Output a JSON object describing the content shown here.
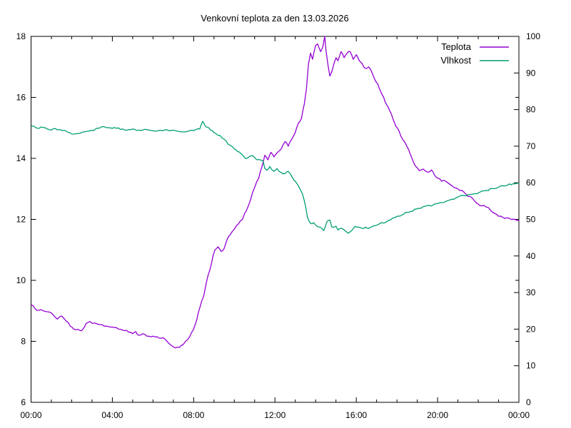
{
  "title": "Venkovní teplota za den 13.03.2026",
  "legend": [
    {
      "label": "Teplota",
      "color": "#9400d3"
    },
    {
      "label": "Vlhkost",
      "color": "#009e73"
    }
  ],
  "axes": {
    "x": {
      "tick_labels": [
        "00:00",
        "04:00",
        "08:00",
        "12:00",
        "16:00",
        "20:00",
        "00:00"
      ],
      "major_every_hours": 4,
      "minor_every_hours": 1,
      "range_hours": [
        0,
        24
      ]
    },
    "y_left": {
      "tick_labels": [
        "6",
        "8",
        "10",
        "12",
        "14",
        "16",
        "18"
      ],
      "range": [
        6,
        18
      ]
    },
    "y_right": {
      "tick_labels": [
        "0",
        "10",
        "20",
        "30",
        "40",
        "50",
        "60",
        "70",
        "80",
        "90",
        "100"
      ],
      "range": [
        0,
        100
      ]
    }
  },
  "chart_data": {
    "type": "line",
    "title": "Venkovní teplota za den 13.03.2026",
    "x_unit": "hours",
    "x_range": [
      0,
      24
    ],
    "y_left_range": [
      6,
      18
    ],
    "y_right_range": [
      0,
      100
    ],
    "grid": false,
    "legend_position": "top-right-inside",
    "series": [
      {
        "name": "Teplota",
        "axis": "left",
        "color": "#9400d3",
        "points": [
          [
            0,
            9.2
          ],
          [
            0.2,
            9.07
          ],
          [
            0.4,
            9.02
          ],
          [
            0.6,
            9.0
          ],
          [
            0.8,
            8.97
          ],
          [
            1.0,
            8.93
          ],
          [
            1.15,
            8.82
          ],
          [
            1.3,
            8.73
          ],
          [
            1.5,
            8.83
          ],
          [
            1.65,
            8.72
          ],
          [
            1.85,
            8.6
          ],
          [
            2.0,
            8.47
          ],
          [
            2.2,
            8.38
          ],
          [
            2.4,
            8.36
          ],
          [
            2.55,
            8.4
          ],
          [
            2.7,
            8.58
          ],
          [
            2.9,
            8.65
          ],
          [
            3.1,
            8.6
          ],
          [
            3.4,
            8.55
          ],
          [
            3.7,
            8.5
          ],
          [
            4.0,
            8.47
          ],
          [
            4.3,
            8.4
          ],
          [
            4.6,
            8.35
          ],
          [
            4.8,
            8.3
          ],
          [
            5.0,
            8.25
          ],
          [
            5.15,
            8.32
          ],
          [
            5.3,
            8.2
          ],
          [
            5.5,
            8.25
          ],
          [
            5.7,
            8.17
          ],
          [
            5.9,
            8.15
          ],
          [
            6.2,
            8.15
          ],
          [
            6.5,
            8.12
          ],
          [
            6.7,
            8.0
          ],
          [
            6.85,
            7.9
          ],
          [
            7.0,
            7.82
          ],
          [
            7.3,
            7.8
          ],
          [
            7.45,
            7.88
          ],
          [
            7.6,
            8.0
          ],
          [
            7.8,
            8.15
          ],
          [
            8.0,
            8.4
          ],
          [
            8.15,
            8.7
          ],
          [
            8.3,
            9.1
          ],
          [
            8.5,
            9.5
          ],
          [
            8.65,
            10.0
          ],
          [
            8.8,
            10.35
          ],
          [
            8.95,
            10.8
          ],
          [
            9.05,
            11.0
          ],
          [
            9.2,
            11.1
          ],
          [
            9.35,
            10.95
          ],
          [
            9.5,
            11.05
          ],
          [
            9.65,
            11.35
          ],
          [
            9.8,
            11.5
          ],
          [
            10.0,
            11.68
          ],
          [
            10.2,
            11.85
          ],
          [
            10.4,
            12.0
          ],
          [
            10.6,
            12.3
          ],
          [
            10.8,
            12.65
          ],
          [
            11.0,
            13.05
          ],
          [
            11.2,
            13.35
          ],
          [
            11.35,
            13.7
          ],
          [
            11.5,
            14.1
          ],
          [
            11.65,
            13.95
          ],
          [
            11.8,
            14.2
          ],
          [
            11.95,
            14.05
          ],
          [
            12.1,
            14.18
          ],
          [
            12.3,
            14.3
          ],
          [
            12.5,
            14.55
          ],
          [
            12.65,
            14.4
          ],
          [
            12.8,
            14.6
          ],
          [
            13.0,
            14.85
          ],
          [
            13.15,
            15.15
          ],
          [
            13.3,
            15.3
          ],
          [
            13.45,
            15.8
          ],
          [
            13.55,
            16.3
          ],
          [
            13.65,
            17.1
          ],
          [
            13.75,
            17.45
          ],
          [
            13.85,
            17.25
          ],
          [
            14.0,
            17.7
          ],
          [
            14.1,
            17.75
          ],
          [
            14.25,
            17.5
          ],
          [
            14.35,
            17.65
          ],
          [
            14.45,
            18.0
          ],
          [
            14.5,
            17.6
          ],
          [
            14.6,
            17.1
          ],
          [
            14.7,
            16.7
          ],
          [
            14.8,
            16.85
          ],
          [
            14.9,
            17.1
          ],
          [
            15.0,
            17.3
          ],
          [
            15.1,
            17.2
          ],
          [
            15.25,
            17.5
          ],
          [
            15.4,
            17.3
          ],
          [
            15.55,
            17.45
          ],
          [
            15.7,
            17.5
          ],
          [
            15.85,
            17.25
          ],
          [
            16.0,
            17.4
          ],
          [
            16.15,
            17.2
          ],
          [
            16.3,
            17.1
          ],
          [
            16.45,
            16.95
          ],
          [
            16.6,
            17.0
          ],
          [
            16.75,
            16.85
          ],
          [
            16.9,
            16.6
          ],
          [
            17.05,
            16.45
          ],
          [
            17.2,
            16.2
          ],
          [
            17.35,
            16.0
          ],
          [
            17.5,
            15.75
          ],
          [
            17.65,
            15.55
          ],
          [
            17.8,
            15.3
          ],
          [
            17.95,
            15.05
          ],
          [
            18.1,
            14.9
          ],
          [
            18.3,
            14.6
          ],
          [
            18.5,
            14.38
          ],
          [
            18.65,
            14.15
          ],
          [
            18.8,
            13.9
          ],
          [
            18.95,
            13.72
          ],
          [
            19.1,
            13.6
          ],
          [
            19.3,
            13.65
          ],
          [
            19.5,
            13.55
          ],
          [
            19.7,
            13.62
          ],
          [
            19.85,
            13.45
          ],
          [
            20.0,
            13.35
          ],
          [
            20.2,
            13.25
          ],
          [
            20.4,
            13.25
          ],
          [
            20.6,
            13.15
          ],
          [
            20.8,
            13.05
          ],
          [
            21.0,
            13.0
          ],
          [
            21.2,
            12.95
          ],
          [
            21.4,
            12.82
          ],
          [
            21.6,
            12.75
          ],
          [
            21.8,
            12.62
          ],
          [
            22.0,
            12.5
          ],
          [
            22.2,
            12.45
          ],
          [
            22.4,
            12.4
          ],
          [
            22.6,
            12.3
          ],
          [
            22.8,
            12.2
          ],
          [
            23.0,
            12.1
          ],
          [
            23.2,
            12.07
          ],
          [
            23.4,
            12.05
          ],
          [
            23.6,
            12.0
          ],
          [
            23.8,
            12.0
          ],
          [
            24.0,
            11.97
          ]
        ]
      },
      {
        "name": "Vlhkost",
        "axis": "right",
        "color": "#009e73",
        "points": [
          [
            0,
            75.5
          ],
          [
            0.3,
            74.9
          ],
          [
            0.6,
            75.1
          ],
          [
            0.9,
            74.5
          ],
          [
            1.2,
            74.8
          ],
          [
            1.5,
            74.3
          ],
          [
            1.8,
            73.8
          ],
          [
            2.1,
            73.3
          ],
          [
            2.4,
            73.5
          ],
          [
            2.7,
            74.0
          ],
          [
            3.0,
            74.3
          ],
          [
            3.3,
            74.9
          ],
          [
            3.6,
            75.3
          ],
          [
            3.9,
            75.0
          ],
          [
            4.2,
            74.9
          ],
          [
            4.5,
            74.7
          ],
          [
            4.8,
            74.5
          ],
          [
            5.1,
            74.6
          ],
          [
            5.4,
            74.3
          ],
          [
            5.7,
            74.5
          ],
          [
            6.0,
            74.2
          ],
          [
            6.3,
            74.3
          ],
          [
            6.6,
            74.5
          ],
          [
            6.9,
            74.3
          ],
          [
            7.2,
            74.1
          ],
          [
            7.5,
            73.9
          ],
          [
            7.8,
            74.2
          ],
          [
            8.1,
            74.5
          ],
          [
            8.3,
            74.7
          ],
          [
            8.45,
            76.8
          ],
          [
            8.6,
            75.3
          ],
          [
            8.75,
            75.0
          ],
          [
            8.9,
            74.3
          ],
          [
            9.1,
            73.4
          ],
          [
            9.3,
            72.9
          ],
          [
            9.5,
            71.9
          ],
          [
            9.7,
            70.5
          ],
          [
            9.9,
            69.9
          ],
          [
            10.1,
            68.9
          ],
          [
            10.25,
            68.4
          ],
          [
            10.4,
            67.6
          ],
          [
            10.55,
            66.6
          ],
          [
            10.7,
            67.0
          ],
          [
            10.9,
            67.4
          ],
          [
            11.1,
            66.3
          ],
          [
            11.3,
            66.2
          ],
          [
            11.42,
            65.9
          ],
          [
            11.5,
            63.9
          ],
          [
            11.6,
            63.4
          ],
          [
            11.75,
            64.4
          ],
          [
            11.95,
            63.1
          ],
          [
            12.1,
            63.9
          ],
          [
            12.3,
            62.8
          ],
          [
            12.5,
            62.5
          ],
          [
            12.65,
            63.1
          ],
          [
            12.85,
            61.5
          ],
          [
            13.0,
            60.4
          ],
          [
            13.2,
            58.7
          ],
          [
            13.35,
            57.0
          ],
          [
            13.45,
            55.0
          ],
          [
            13.6,
            50.5
          ],
          [
            13.75,
            48.9
          ],
          [
            13.9,
            49.1
          ],
          [
            14.05,
            48.2
          ],
          [
            14.2,
            47.9
          ],
          [
            14.4,
            46.9
          ],
          [
            14.55,
            49.3
          ],
          [
            14.7,
            49.8
          ],
          [
            14.8,
            47.9
          ],
          [
            15.0,
            48.1
          ],
          [
            15.1,
            47.1
          ],
          [
            15.25,
            47.6
          ],
          [
            15.45,
            46.9
          ],
          [
            15.6,
            46.2
          ],
          [
            15.8,
            47.1
          ],
          [
            15.95,
            48.1
          ],
          [
            16.1,
            47.9
          ],
          [
            16.3,
            47.5
          ],
          [
            16.45,
            47.9
          ],
          [
            16.6,
            47.5
          ],
          [
            16.8,
            48.1
          ],
          [
            17.0,
            48.4
          ],
          [
            17.15,
            48.8
          ],
          [
            17.3,
            49.0
          ],
          [
            17.5,
            49.4
          ],
          [
            17.7,
            49.9
          ],
          [
            17.85,
            50.4
          ],
          [
            18.05,
            50.9
          ],
          [
            18.25,
            51.2
          ],
          [
            18.5,
            51.9
          ],
          [
            18.7,
            52.2
          ],
          [
            18.95,
            52.8
          ],
          [
            19.2,
            53.1
          ],
          [
            19.4,
            53.6
          ],
          [
            19.6,
            53.8
          ],
          [
            19.8,
            54.0
          ],
          [
            20.1,
            54.5
          ],
          [
            20.4,
            54.9
          ],
          [
            20.7,
            55.5
          ],
          [
            21.0,
            56.1
          ],
          [
            21.3,
            56.5
          ],
          [
            21.6,
            56.8
          ],
          [
            21.8,
            57.0
          ],
          [
            22.1,
            57.5
          ],
          [
            22.4,
            57.9
          ],
          [
            22.7,
            58.4
          ],
          [
            23.0,
            58.8
          ],
          [
            23.2,
            59.2
          ],
          [
            23.45,
            59.4
          ],
          [
            23.7,
            59.7
          ],
          [
            24.0,
            60.0
          ]
        ]
      }
    ]
  }
}
